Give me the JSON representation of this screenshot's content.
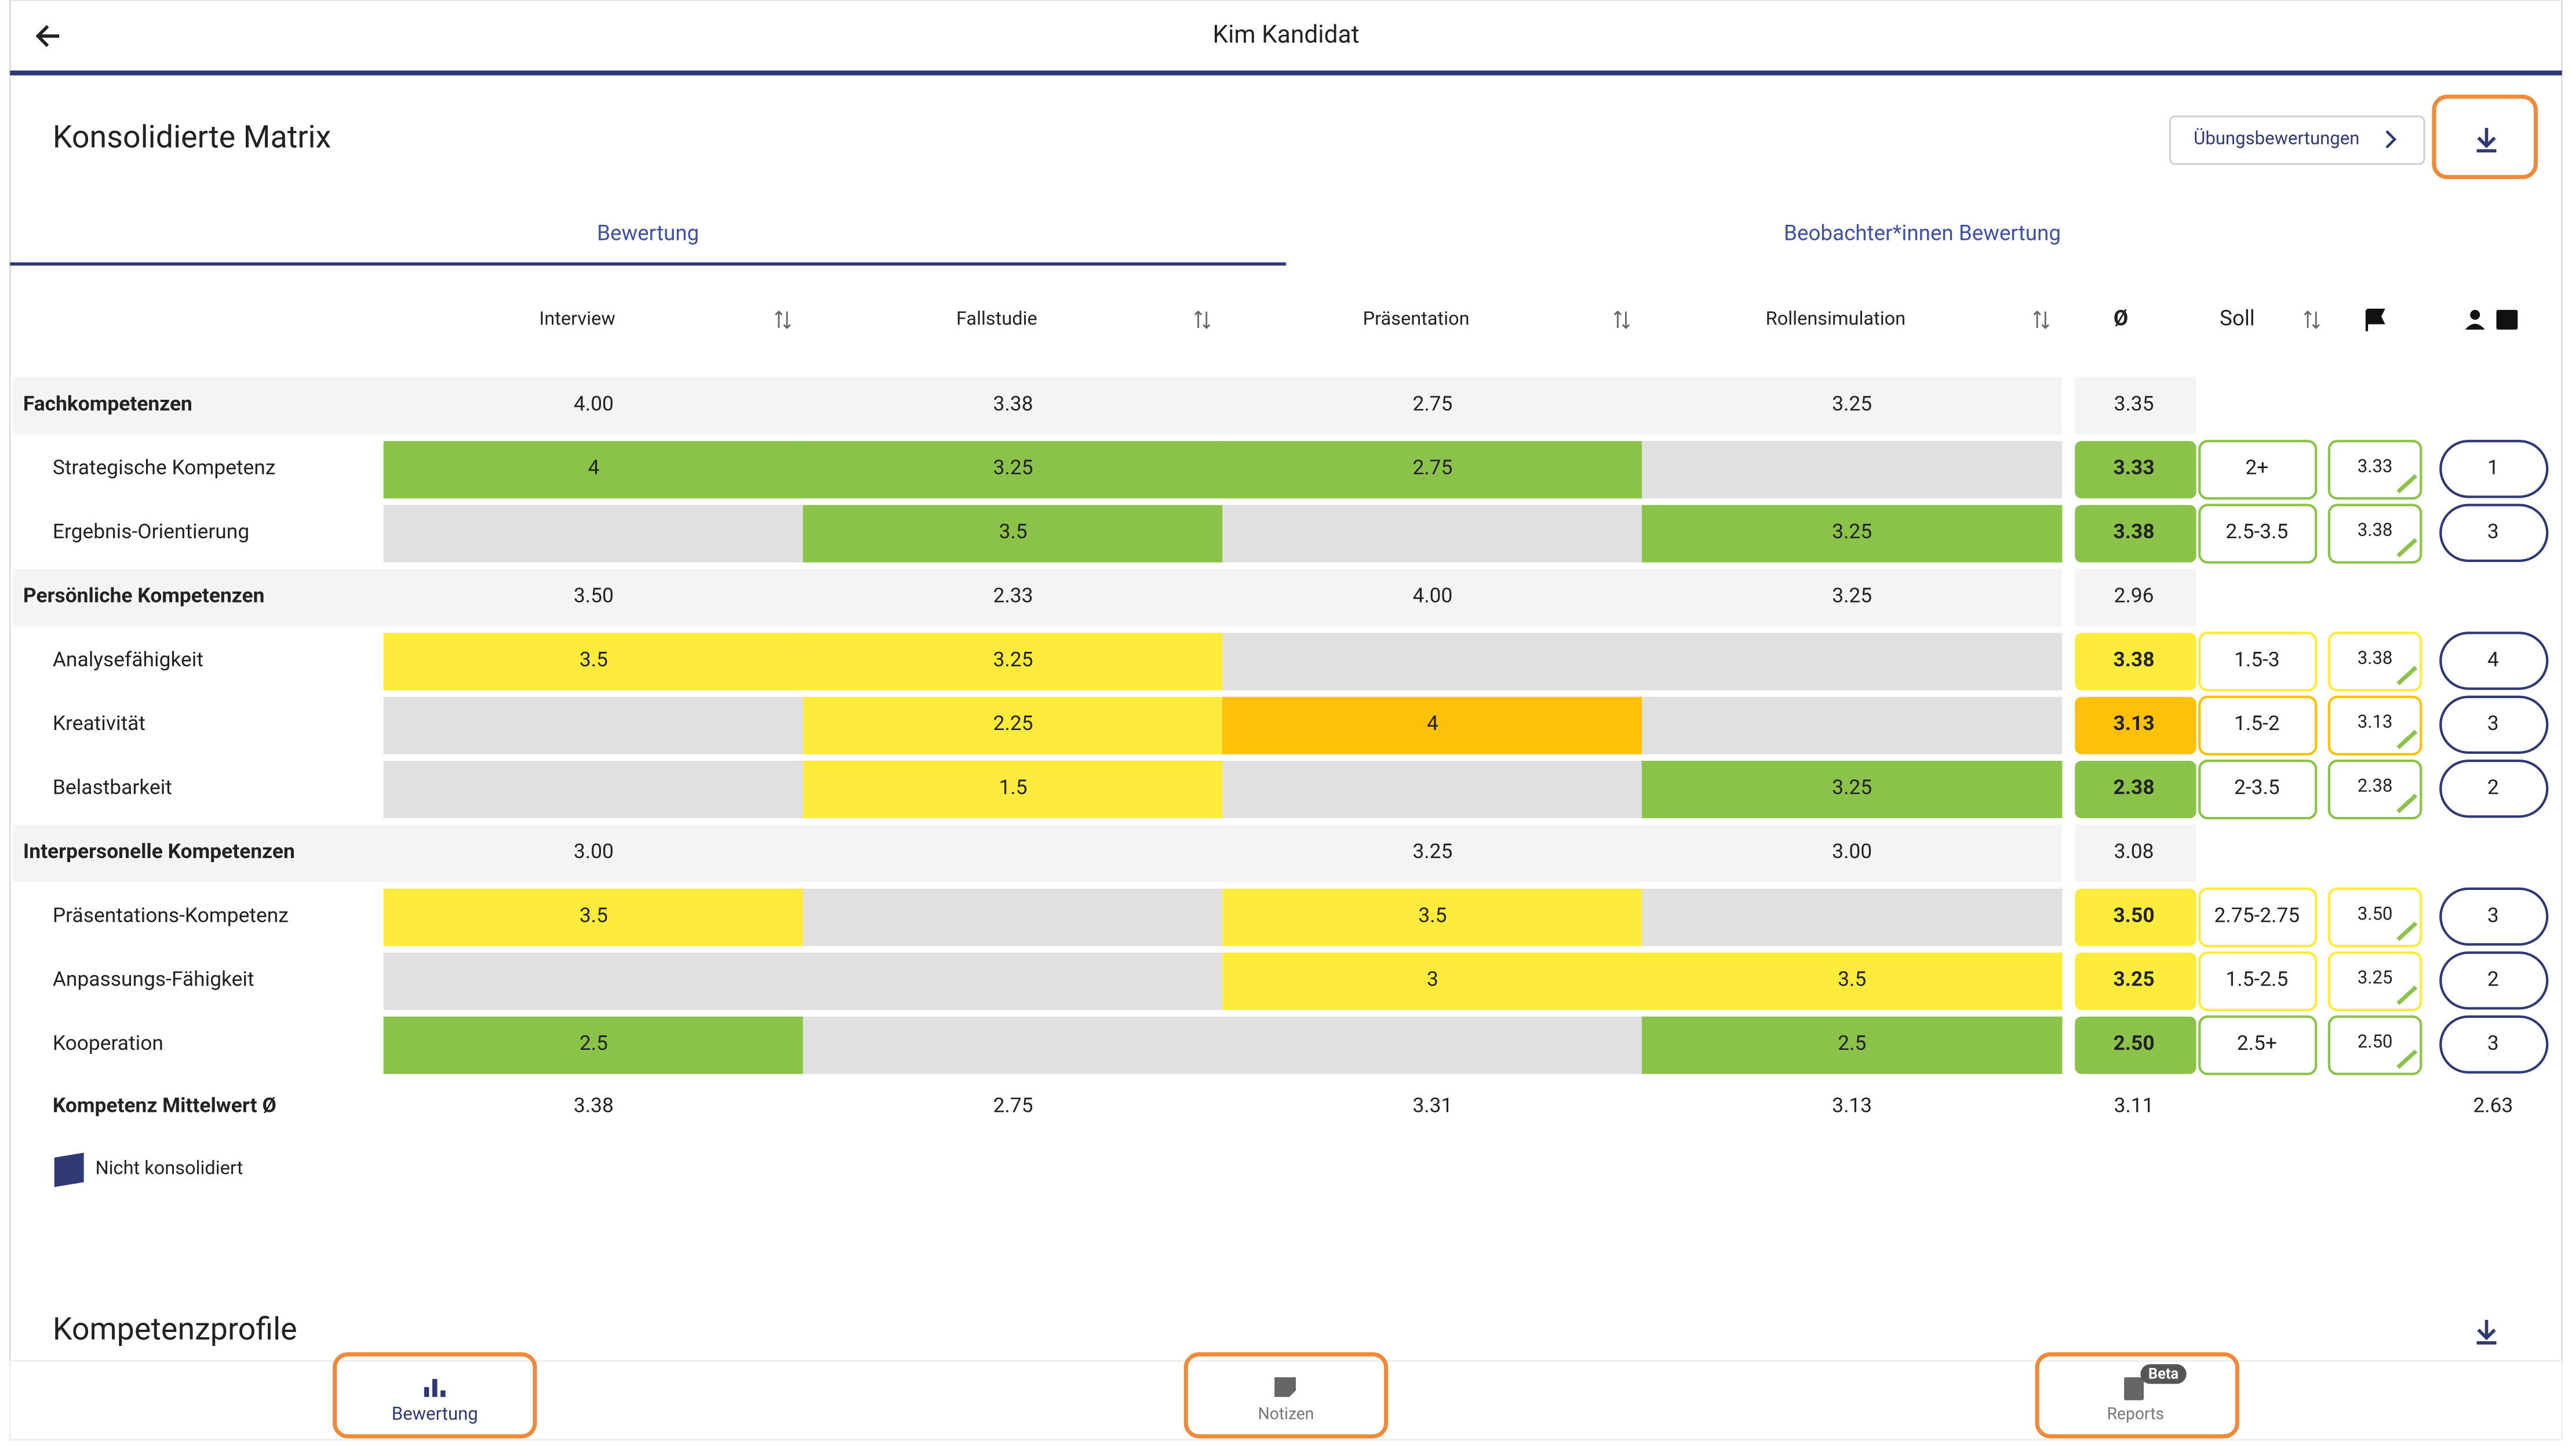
{
  "header": {
    "title": "Kim Kandidat"
  },
  "section": {
    "title": "Konsolidierte Matrix",
    "button": "Übungsbewertungen"
  },
  "tabs": [
    "Bewertung",
    "Beobachter*innen Bewertung"
  ],
  "columns": [
    "Interview",
    "Fallstudie",
    "Präsentation",
    "Rollensimulation"
  ],
  "avg_header": "Ø",
  "soll_header": "Soll",
  "rows": [
    {
      "kind": "group",
      "name": "Fachkompetenzen",
      "values": [
        "4.00",
        "3.38",
        "2.75",
        "3.25"
      ],
      "avg": "3.35"
    },
    {
      "kind": "item",
      "name": "Strategische Kompetenz",
      "cells": [
        {
          "value": "4",
          "color": "#8bc34a"
        },
        {
          "value": "3.25",
          "color": "#8bc34a"
        },
        {
          "value": "2.75",
          "color": "#8bc34a"
        },
        {
          "value": null,
          "color": "#e0e0e0"
        }
      ],
      "avg": "3.33",
      "color": "#8bc34a",
      "soll": "2+",
      "score": "3.33",
      "count": "1"
    },
    {
      "kind": "item",
      "name": "Ergebnis-Orientierung",
      "cells": [
        {
          "value": null,
          "color": "#e0e0e0"
        },
        {
          "value": "3.5",
          "color": "#8bc34a"
        },
        {
          "value": null,
          "color": "#e0e0e0"
        },
        {
          "value": "3.25",
          "color": "#8bc34a"
        }
      ],
      "avg": "3.38",
      "color": "#8bc34a",
      "soll": "2.5-3.5",
      "score": "3.38",
      "count": "3"
    },
    {
      "kind": "group",
      "name": "Persönliche Kompetenzen",
      "values": [
        "3.50",
        "2.33",
        "4.00",
        "3.25"
      ],
      "avg": "2.96"
    },
    {
      "kind": "item",
      "name": "Analysefähigkeit",
      "cells": [
        {
          "value": "3.5",
          "color": "#ffeb3b"
        },
        {
          "value": "3.25",
          "color": "#ffeb3b"
        },
        {
          "value": null,
          "color": "#e0e0e0"
        },
        {
          "value": null,
          "color": "#e0e0e0"
        }
      ],
      "avg": "3.38",
      "color": "#ffeb3b",
      "soll": "1.5-3",
      "score": "3.38",
      "count": "4"
    },
    {
      "kind": "item",
      "name": "Kreativität",
      "cells": [
        {
          "value": null,
          "color": "#e0e0e0"
        },
        {
          "value": "2.25",
          "color": "#ffeb3b"
        },
        {
          "value": "4",
          "color": "#ffc107"
        },
        {
          "value": null,
          "color": "#e0e0e0"
        }
      ],
      "avg": "3.13",
      "color": "#ffc107",
      "soll": "1.5-2",
      "score": "3.13",
      "count": "3"
    },
    {
      "kind": "item",
      "name": "Belastbarkeit",
      "cells": [
        {
          "value": null,
          "color": "#e0e0e0"
        },
        {
          "value": "1.5",
          "color": "#ffeb3b"
        },
        {
          "value": null,
          "color": "#e0e0e0"
        },
        {
          "value": "3.25",
          "color": "#8bc34a"
        }
      ],
      "avg": "2.38",
      "color": "#8bc34a",
      "soll": "2-3.5",
      "score": "2.38",
      "count": "2"
    },
    {
      "kind": "group",
      "name": "Interpersonelle Kompetenzen",
      "values": [
        "3.00",
        null,
        "3.25",
        "3.00"
      ],
      "avg": "3.08"
    },
    {
      "kind": "item",
      "name": "Präsentations-Kompetenz",
      "cells": [
        {
          "value": "3.5",
          "color": "#ffeb3b"
        },
        {
          "value": null,
          "color": "#e0e0e0"
        },
        {
          "value": "3.5",
          "color": "#ffeb3b"
        },
        {
          "value": null,
          "color": "#e0e0e0"
        }
      ],
      "avg": "3.50",
      "color": "#ffeb3b",
      "soll": "2.75-2.75",
      "score": "3.50",
      "count": "3"
    },
    {
      "kind": "item",
      "name": "Anpassungs-Fähigkeit",
      "cells": [
        {
          "value": null,
          "color": "#e0e0e0"
        },
        {
          "value": null,
          "color": "#e0e0e0"
        },
        {
          "value": "3",
          "color": "#ffeb3b"
        },
        {
          "value": "3.5",
          "color": "#ffeb3b"
        }
      ],
      "avg": "3.25",
      "color": "#ffeb3b",
      "soll": "1.5-2.5",
      "score": "3.25",
      "count": "2"
    },
    {
      "kind": "item",
      "name": "Kooperation",
      "cells": [
        {
          "value": "2.5",
          "color": "#8bc34a"
        },
        {
          "value": null,
          "color": "#e0e0e0"
        },
        {
          "value": null,
          "color": "#e0e0e0"
        },
        {
          "value": "2.5",
          "color": "#8bc34a"
        }
      ],
      "avg": "2.50",
      "color": "#8bc34a",
      "soll": "2.5+",
      "score": "2.50",
      "count": "3"
    }
  ],
  "footer": {
    "label": "Kompetenz Mittelwert Ø",
    "values": [
      "3.38",
      "2.75",
      "3.31",
      "3.13"
    ],
    "avg": "3.11",
    "count_avg": "2.63"
  },
  "legend": "Nicht konsolidiert",
  "profile_title": "Kompetenzprofile",
  "nav": [
    "Bewertung",
    "Notizen",
    "Reports"
  ],
  "nav_badge": "Beta"
}
